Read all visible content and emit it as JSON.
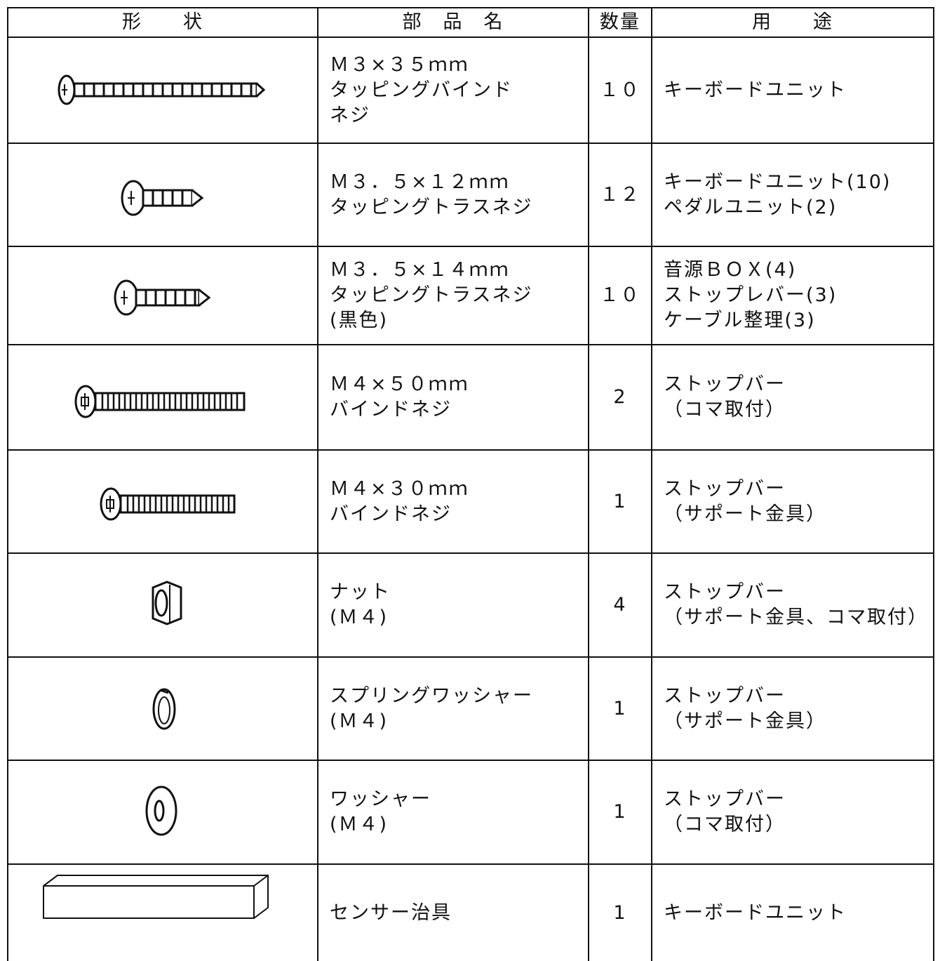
{
  "table": {
    "header": [
      "形　　状",
      "部　品　名",
      "数量",
      "用　　途"
    ],
    "rows": [
      {
        "name": [
          "Ｍ３×３５ｍｍ",
          "タッピングバインド",
          "ネジ"
        ],
        "qty": "１０",
        "use": [
          "キーボードユニット"
        ]
      },
      {
        "name": [
          "Ｍ３．５×１２ｍｍ",
          "タッピングトラスネジ"
        ],
        "qty": "１２",
        "use": [
          "キーボードユニット(10)",
          "ペダルユニット(2)"
        ]
      },
      {
        "name": [
          "Ｍ３．５×１４ｍｍ",
          "タッピングトラスネジ",
          "(黒色)"
        ],
        "qty": "１０",
        "use": [
          "音源ＢＯＸ(4)",
          "ストップレバー(3)",
          "ケーブル整理(3)"
        ]
      },
      {
        "name": [
          "Ｍ４×５０ｍｍ",
          "バインドネジ"
        ],
        "qty": "2",
        "use": [
          "ストップバー",
          "（コマ取付）"
        ]
      },
      {
        "name": [
          "Ｍ４×３０ｍｍ",
          "バインドネジ"
        ],
        "qty": "1",
        "use": [
          "ストップバー",
          "（サポート金具）"
        ]
      },
      {
        "name": [
          "ナット",
          "(Ｍ４)"
        ],
        "qty": "4",
        "use": [
          "ストップバー",
          "（サポート金具、コマ取付）"
        ]
      },
      {
        "name": [
          "スプリングワッシャー",
          "(Ｍ４)"
        ],
        "qty": "1",
        "use": [
          "ストップバー",
          "（サポート金具）"
        ]
      },
      {
        "name": [
          "ワッシャー",
          "(Ｍ４)"
        ],
        "qty": "1",
        "use": [
          "ストップバー",
          "（コマ取付）"
        ]
      },
      {
        "name": [
          "センサー治具"
        ],
        "qty": "1",
        "use": [
          "キーボードユニット"
        ]
      }
    ]
  }
}
